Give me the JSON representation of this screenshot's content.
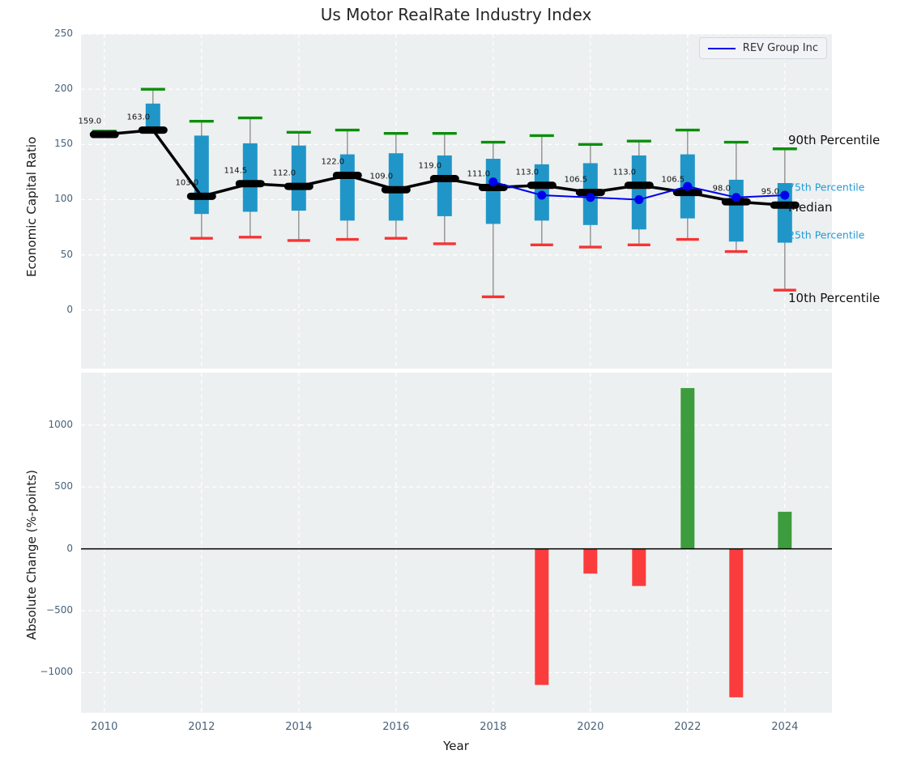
{
  "figure": {
    "title": "Us Motor RealRate Industry Index",
    "xlabel": "Year",
    "legend": {
      "entries": [
        {
          "label": "REV Group Inc",
          "color": "#0000ee"
        }
      ]
    }
  },
  "colors": {
    "plot_bg": "#edf0f1",
    "grid": "#ffffff",
    "box_fill": "#2096c8",
    "green_cap": "#0a8f0a",
    "red_cap": "#f63434",
    "whisker": "#919191",
    "median": "#000000",
    "rev_line": "#0000ee",
    "bar_positive": "#3d9c3d",
    "bar_negative": "#fa3c3c",
    "zero_line": "#000000",
    "tick_color": "#49627a"
  },
  "chart_data": [
    {
      "type": "boxplot+line",
      "title": "Us Motor RealRate Industry Index",
      "ylabel": "Economic Capital Ratio",
      "ylim": [
        -53,
        250
      ],
      "yticks": [
        0,
        50,
        100,
        150,
        200,
        250
      ],
      "xlim": [
        2009.52,
        2024.97
      ],
      "xticks": [
        2010,
        2012,
        2014,
        2016,
        2018,
        2020,
        2022,
        2024
      ],
      "grid": true,
      "legend_position": "upper right",
      "years": [
        2010,
        2011,
        2012,
        2013,
        2014,
        2015,
        2016,
        2017,
        2018,
        2019,
        2020,
        2021,
        2022,
        2023,
        2024
      ],
      "median": [
        159,
        163,
        103,
        114.5,
        112,
        122,
        109,
        119,
        111,
        113,
        106.5,
        113,
        106.5,
        98,
        95
      ],
      "median_labels": [
        "159.0",
        "163.0",
        "103.0",
        "114.5",
        "112.0",
        "122.0",
        "109.0",
        "119.0",
        "111.0",
        "113.0",
        "106.5",
        "113.0",
        "106.5",
        "98.0",
        "95.0"
      ],
      "p90": [
        162,
        200,
        171,
        174,
        161,
        163,
        160,
        160,
        152,
        158,
        150,
        153,
        163,
        152,
        146
      ],
      "p75": [
        160,
        187,
        158,
        151,
        149,
        141,
        142,
        140,
        137,
        132,
        133,
        140,
        141,
        118,
        115
      ],
      "p25": [
        158,
        166,
        87,
        89,
        90,
        81,
        81,
        85,
        78,
        81,
        77,
        73,
        83,
        62,
        61
      ],
      "p10": [
        null,
        null,
        65,
        66,
        63,
        64,
        65,
        60,
        12,
        59,
        57,
        59,
        64,
        53,
        18
      ],
      "series": [
        {
          "name": "REV Group Inc",
          "x": [
            2018,
            2019,
            2020,
            2021,
            2022,
            2023,
            2024
          ],
          "values": [
            116,
            104,
            102,
            100,
            112,
            102,
            104
          ],
          "style": "line+markers",
          "color": "#0000ee"
        }
      ],
      "annotations": [
        {
          "label": "90th Percentile",
          "value": 154,
          "style": "black-large"
        },
        {
          "label": "75th Percentile",
          "value": 111,
          "style": "blue-small"
        },
        {
          "label": "Median",
          "value": 93,
          "style": "black-large"
        },
        {
          "label": "25th Percentile",
          "value": 68,
          "style": "blue-small"
        },
        {
          "label": "10th Percentile",
          "value": 11,
          "style": "black-large"
        }
      ]
    },
    {
      "type": "bar",
      "ylabel": "Absolute Change (%-points)",
      "xlabel": "Year",
      "ylim": [
        -1325,
        1425
      ],
      "yticks": [
        -1000,
        -500,
        0,
        500,
        1000
      ],
      "xlim": [
        2009.52,
        2024.97
      ],
      "xticks": [
        2010,
        2012,
        2014,
        2016,
        2018,
        2020,
        2022,
        2024
      ],
      "grid": true,
      "categories": [
        2019,
        2020,
        2021,
        2022,
        2023,
        2024
      ],
      "values": [
        -1100,
        -200,
        -300,
        1300,
        -1200,
        300
      ]
    }
  ]
}
